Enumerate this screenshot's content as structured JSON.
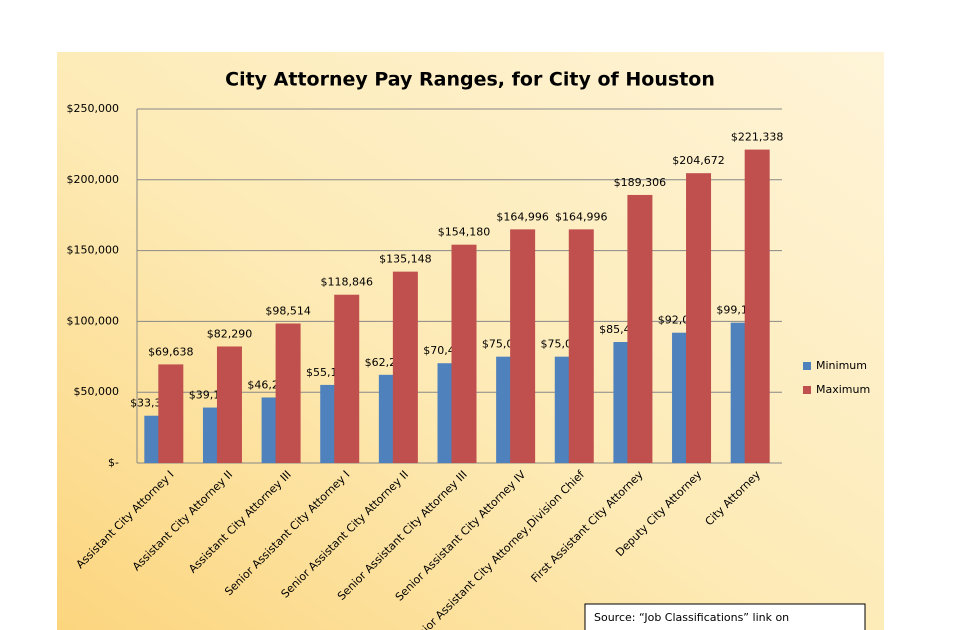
{
  "chart_data": {
    "type": "bar",
    "title": "City Attorney Pay Ranges, for City of Houston",
    "categories": [
      "Assistant City Attorney I",
      "Assistant City Attorney II",
      "Assistant City Attorney III",
      "Senior Assistant City Attorney I",
      "Senior Assistant City Attorney II",
      "Senior Assistant City Attorney III",
      "Senior Assistant City Attorney IV",
      "Senior Assistant City Attorney,Division Chief",
      "First Assistant City Attorney",
      "Deputy City Attorney",
      "City Attorney"
    ],
    "series": [
      {
        "name": "Minimum",
        "color": "#4f81bd",
        "values": [
          33384,
          39156,
          46280,
          55146,
          62270,
          70460,
          75088,
          75088,
          85462,
          92014,
          99112
        ],
        "value_labels": [
          "$33,384",
          "$39,156",
          "$46,280",
          "$55,146",
          "$62,270",
          "$70,460",
          "$75,088",
          "$75,088",
          "$85,462",
          "$92,014",
          "$99,112"
        ]
      },
      {
        "name": "Maximum",
        "color": "#c0504d",
        "values": [
          69638,
          82290,
          98514,
          118846,
          135148,
          154180,
          164996,
          164996,
          189306,
          204672,
          221338
        ],
        "value_labels": [
          "$69,638",
          "$82,290",
          "$98,514",
          "$118,846",
          "$135,148",
          "$154,180",
          "$164,996",
          "$164,996",
          "$189,306",
          "$204,672",
          "$221,338"
        ]
      }
    ],
    "ylim": [
      0,
      250000
    ],
    "yticks": [
      {
        "value": 0,
        "label": "$-"
      },
      {
        "value": 50000,
        "label": "$50,000"
      },
      {
        "value": 100000,
        "label": "$100,000"
      },
      {
        "value": 150000,
        "label": "$150,000"
      },
      {
        "value": 200000,
        "label": "$200,000"
      },
      {
        "value": 250000,
        "label": "$250,000"
      }
    ],
    "grid": true,
    "legend": "right",
    "source": "Source: “Job Classifications” link on"
  }
}
